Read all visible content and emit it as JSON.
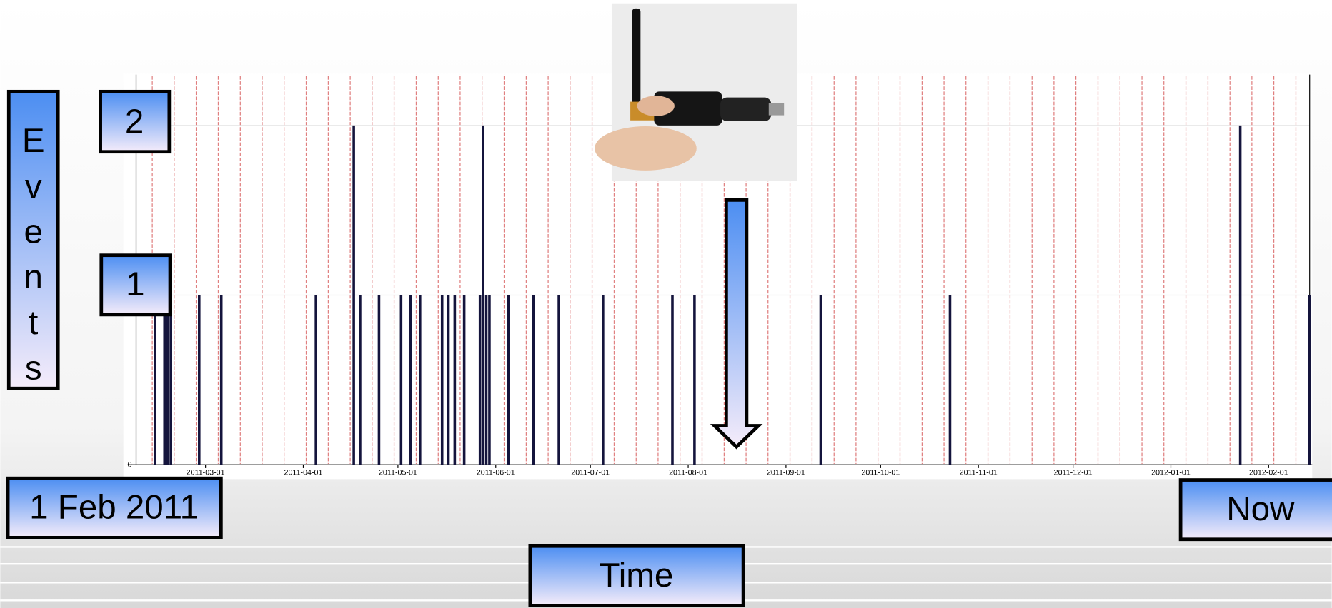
{
  "chart_data": {
    "type": "bar",
    "y_label": "Events",
    "x_label": "Time",
    "annotations": [
      "1 Feb 2011",
      "Now"
    ],
    "x": [
      "2011-02-13",
      "2011-02-16",
      "2011-02-17",
      "2011-02-18",
      "2011-02-27",
      "2011-03-06",
      "2011-04-05",
      "2011-04-17",
      "2011-04-19",
      "2011-04-25",
      "2011-05-02",
      "2011-05-05",
      "2011-05-08",
      "2011-05-15",
      "2011-05-17",
      "2011-05-19",
      "2011-05-22",
      "2011-05-27",
      "2011-05-28",
      "2011-05-29",
      "2011-05-30",
      "2011-06-05",
      "2011-06-13",
      "2011-06-21",
      "2011-07-05",
      "2011-07-27",
      "2011-08-03",
      "2011-09-12",
      "2011-10-23",
      "2012-01-23",
      "2012-02-14"
    ],
    "values": [
      1,
      1,
      1,
      1,
      1,
      1,
      1,
      2,
      1,
      1,
      1,
      1,
      1,
      1,
      1,
      1,
      1,
      1,
      2,
      1,
      1,
      1,
      1,
      1,
      1,
      1,
      1,
      1,
      1,
      2,
      1
    ],
    "color": "#14143c",
    "xlim": [
      "2011-02-07",
      "2012-02-14"
    ],
    "xticks": [
      "2011-03-01",
      "2011-04-01",
      "2011-05-01",
      "2011-06-01",
      "2011-07-01",
      "2011-08-01",
      "2011-09-01",
      "2011-10-01",
      "2011-11-01",
      "2011-12-01",
      "2012-01-01",
      "2012-02-01"
    ],
    "ylim": [
      0,
      2.3
    ],
    "yticks": [
      0,
      1,
      2
    ],
    "grid": true
  }
}
